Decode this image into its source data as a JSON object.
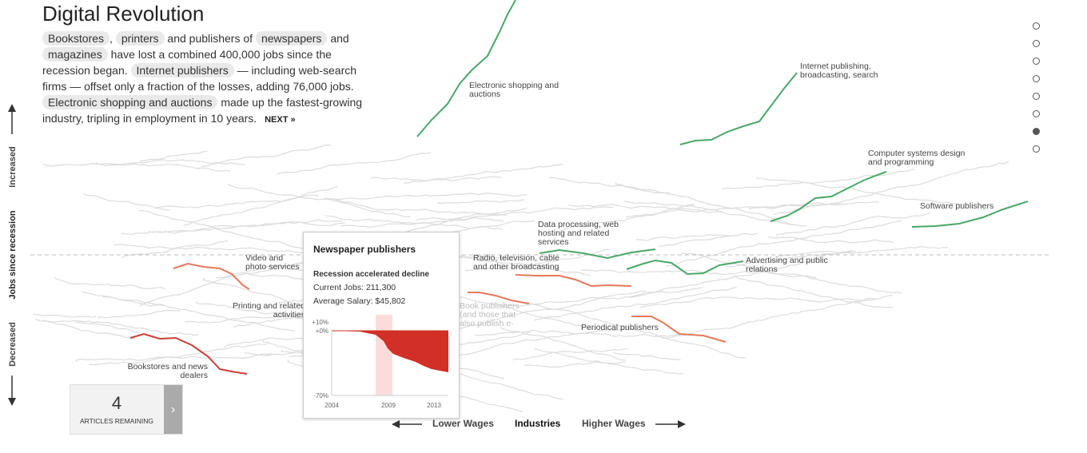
{
  "title": "Digital Revolution",
  "intro": {
    "chip_bookstores": "Bookstores",
    "sep1": ",",
    "chip_printers": "printers",
    "txt1": "and publishers of",
    "chip_newspapers": "newspapers",
    "txt2": "and",
    "chip_magazines": "magazines",
    "txt3": "have lost a combined 400,000 jobs since the recession began.",
    "chip_internet": "Internet publishers",
    "txt4": "— including web-search firms — offset only a fraction of the losses, adding 76,000 jobs.",
    "chip_shopping": "Electronic shopping and auctions",
    "txt5": "made up the fastest-growing industry, tripling in employment in 10 years.",
    "next": "NEXT »"
  },
  "yaxis": {
    "increased": "Increased",
    "jobs": "Jobs since recession",
    "decreased": "Decreased"
  },
  "xaxis": {
    "lower": "Lower Wages",
    "industries": "Industries",
    "higher": "Higher Wages"
  },
  "nav_dots": 8,
  "nav_active_index": 6,
  "labels": {
    "shopping": "Electronic shopping and auctions",
    "internet": "Internet publishing, broadcasting, search",
    "computer": "Computer systems design and programming",
    "software": "Software publishers",
    "dataproc": "Data processing, web hosting and related services",
    "advertising": "Advertising and public relations",
    "radio": "Radio, television, cable and other broadcasting",
    "video": "Video and photo services",
    "printing": "Printing and related activities",
    "books": "Book publishers (and those that also publish e-",
    "periodical": "Periodical publishers",
    "bookstores": "Bookstores and news dealers"
  },
  "tooltip": {
    "title": "Newspaper publishers",
    "subtitle": "Recession accelerated decline",
    "jobs": "Current Jobs: 211,300",
    "salary": "Average Salary: $45,802",
    "y_top": "+10%",
    "y_zero": "+0%",
    "y_bottom": "-70%",
    "x_ticks": [
      "2004",
      "2009",
      "2013"
    ]
  },
  "articles": {
    "count": "4",
    "label": "ARTICLES REMAINING",
    "arrow": "›"
  },
  "colors": {
    "growth": "#4aa768",
    "decline": "#e4795a",
    "decline_dark": "#cc3d33",
    "background_lines": "#dcdcdc"
  }
}
